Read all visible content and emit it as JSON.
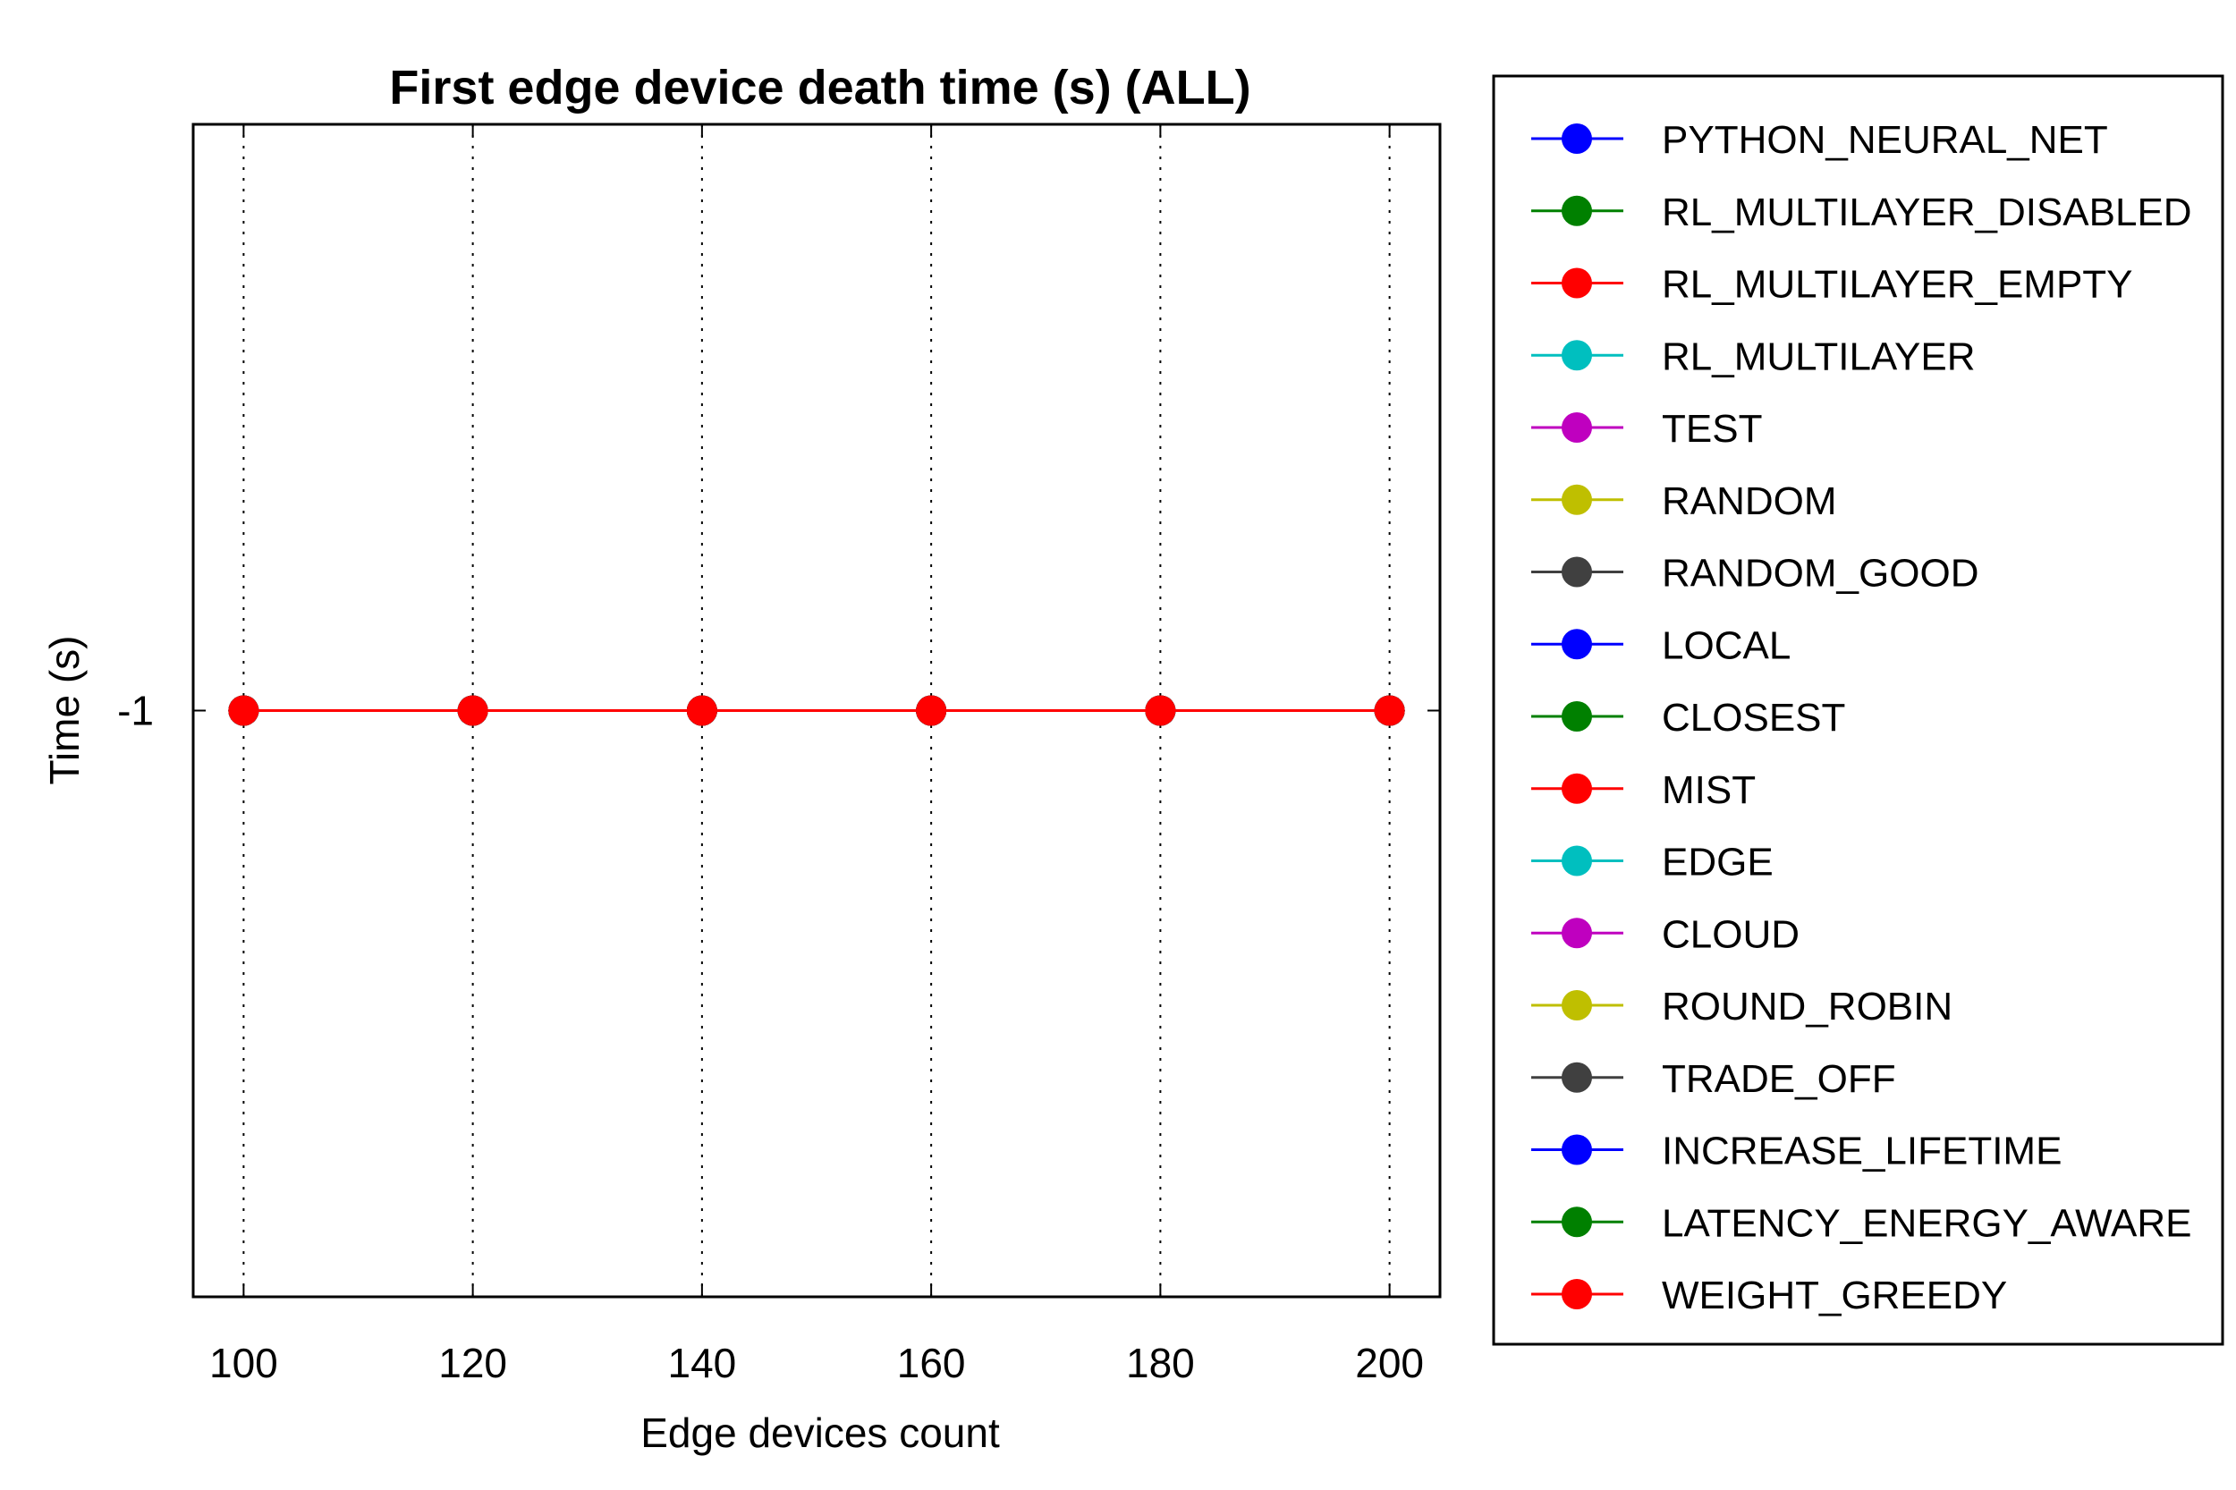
{
  "chart_data": {
    "type": "line",
    "title": "First edge device death time (s) (ALL)",
    "xlabel": "Edge devices count",
    "ylabel": "Time (s)",
    "x": [
      100,
      120,
      140,
      160,
      180,
      200
    ],
    "x_ticks": [
      "100",
      "120",
      "140",
      "160",
      "180",
      "200"
    ],
    "y_ticks": [
      "-1"
    ],
    "xlim": [
      95.6,
      204.4
    ],
    "ylim": [
      -2,
      0
    ],
    "grid": "vertical-dotted",
    "legend_position": "outside-right",
    "series": [
      {
        "name": "PYTHON_NEURAL_NET",
        "color": "#0000ff",
        "values": [
          -1,
          -1,
          -1,
          -1,
          -1,
          -1
        ]
      },
      {
        "name": "RL_MULTILAYER_DISABLED",
        "color": "#008000",
        "values": [
          -1,
          -1,
          -1,
          -1,
          -1,
          -1
        ]
      },
      {
        "name": "RL_MULTILAYER_EMPTY",
        "color": "#ff0000",
        "values": [
          -1,
          -1,
          -1,
          -1,
          -1,
          -1
        ]
      },
      {
        "name": "RL_MULTILAYER",
        "color": "#00bfbf",
        "values": [
          -1,
          -1,
          -1,
          -1,
          -1,
          -1
        ]
      },
      {
        "name": "TEST",
        "color": "#bf00bf",
        "values": [
          -1,
          -1,
          -1,
          -1,
          -1,
          -1
        ]
      },
      {
        "name": "RANDOM",
        "color": "#bfbf00",
        "values": [
          -1,
          -1,
          -1,
          -1,
          -1,
          -1
        ]
      },
      {
        "name": "RANDOM_GOOD",
        "color": "#404040",
        "values": [
          -1,
          -1,
          -1,
          -1,
          -1,
          -1
        ]
      },
      {
        "name": "LOCAL",
        "color": "#0000ff",
        "values": [
          -1,
          -1,
          -1,
          -1,
          -1,
          -1
        ]
      },
      {
        "name": "CLOSEST",
        "color": "#008000",
        "values": [
          -1,
          -1,
          -1,
          -1,
          -1,
          -1
        ]
      },
      {
        "name": "MIST",
        "color": "#ff0000",
        "values": [
          -1,
          -1,
          -1,
          -1,
          -1,
          -1
        ]
      },
      {
        "name": "EDGE",
        "color": "#00bfbf",
        "values": [
          -1,
          -1,
          -1,
          -1,
          -1,
          -1
        ]
      },
      {
        "name": "CLOUD",
        "color": "#bf00bf",
        "values": [
          -1,
          -1,
          -1,
          -1,
          -1,
          -1
        ]
      },
      {
        "name": "ROUND_ROBIN",
        "color": "#bfbf00",
        "values": [
          -1,
          -1,
          -1,
          -1,
          -1,
          -1
        ]
      },
      {
        "name": "TRADE_OFF",
        "color": "#404040",
        "values": [
          -1,
          -1,
          -1,
          -1,
          -1,
          -1
        ]
      },
      {
        "name": "INCREASE_LIFETIME",
        "color": "#0000ff",
        "values": [
          -1,
          -1,
          -1,
          -1,
          -1,
          -1
        ]
      },
      {
        "name": "LATENCY_ENERGY_AWARE",
        "color": "#008000",
        "values": [
          -1,
          -1,
          -1,
          -1,
          -1,
          -1
        ]
      },
      {
        "name": "WEIGHT_GREEDY",
        "color": "#ff0000",
        "values": [
          -1,
          -1,
          -1,
          -1,
          -1,
          -1
        ]
      }
    ]
  }
}
